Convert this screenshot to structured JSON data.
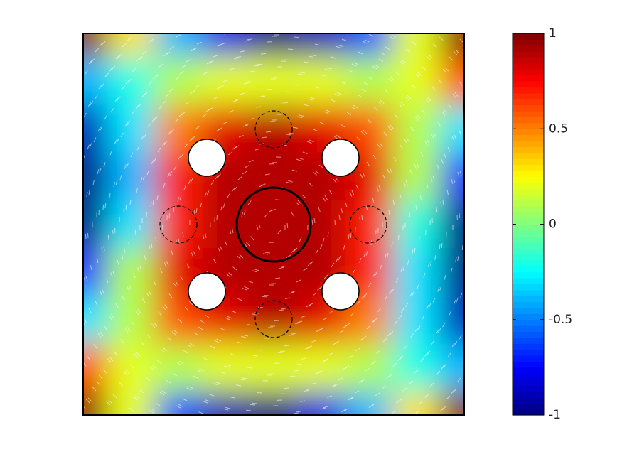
{
  "chart_data": {
    "type": "heatmap",
    "colormap": "jet",
    "values": [
      [
        1,
        0.3,
        -0.4,
        -0.8,
        -1,
        -0.9,
        -0.6,
        0.2,
        1
      ],
      [
        -0.4,
        -0.2,
        0.1,
        0.2,
        0.2,
        0.2,
        0.1,
        0.2,
        0.6
      ],
      [
        -0.9,
        -0.3,
        0.5,
        0.8,
        0.9,
        0.8,
        0.6,
        0.1,
        -0.3
      ],
      [
        -1,
        -0.4,
        0.7,
        0.9,
        0.9,
        0.9,
        0.8,
        0.1,
        -0.7
      ],
      [
        -1,
        -0.3,
        0.7,
        0.9,
        0.9,
        0.9,
        0.7,
        -0.2,
        -1
      ],
      [
        -0.7,
        0.1,
        0.8,
        0.9,
        0.9,
        0.9,
        0.7,
        -0.3,
        -1
      ],
      [
        -0.3,
        0.1,
        0.6,
        0.8,
        0.9,
        0.8,
        0.5,
        -0.3,
        -0.9
      ],
      [
        0.6,
        0.2,
        0.1,
        0.2,
        0.2,
        0.2,
        0.1,
        -0.2,
        -0.4
      ],
      [
        1,
        0.2,
        -0.6,
        -0.9,
        -1,
        -0.8,
        -0.4,
        0.3,
        1
      ]
    ],
    "clim": [
      -1,
      1
    ],
    "cticks": [
      -1,
      -0.5,
      0,
      0.5,
      1
    ]
  }
}
